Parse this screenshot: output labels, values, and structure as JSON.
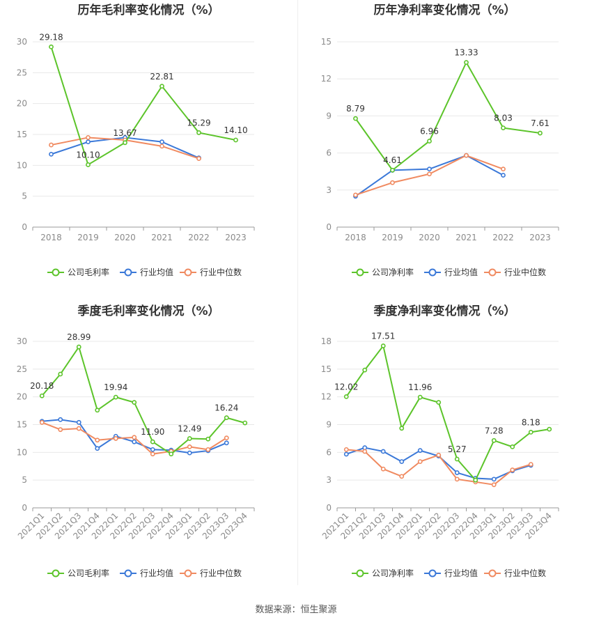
{
  "source_text": "数据来源：恒生聚源",
  "colors": {
    "company": "#5cc42a",
    "avg": "#3a78d8",
    "median": "#f08a60",
    "grid": "#e8e8e8",
    "axis": "#9a9a9a"
  },
  "chart_data": [
    {
      "type": "line",
      "title": "历年毛利率变化情况（%）",
      "categories": [
        "2018",
        "2019",
        "2020",
        "2021",
        "2022",
        "2023"
      ],
      "y_ticks": [
        "0",
        "5",
        "10",
        "15",
        "20",
        "25",
        "30"
      ],
      "ylim": [
        0,
        30
      ],
      "grid": true,
      "legend_position": "bottom",
      "series": [
        {
          "name": "公司毛利率",
          "values": [
            29.18,
            10.1,
            13.67,
            22.81,
            15.29,
            14.1
          ],
          "labels": [
            "29.18",
            "10.10",
            "13.67",
            "22.81",
            "15.29",
            "14.10"
          ]
        },
        {
          "name": "行业均值",
          "values": [
            11.8,
            13.8,
            14.5,
            13.8,
            11.2,
            null
          ]
        },
        {
          "name": "行业中位数",
          "values": [
            13.3,
            14.5,
            14.1,
            13.1,
            11.1,
            null
          ]
        }
      ]
    },
    {
      "type": "line",
      "title": "历年净利率变化情况（%）",
      "categories": [
        "2018",
        "2019",
        "2020",
        "2021",
        "2022",
        "2023"
      ],
      "y_ticks": [
        "0",
        "3",
        "6",
        "9",
        "12",
        "15"
      ],
      "ylim": [
        0,
        15
      ],
      "grid": true,
      "legend_position": "bottom",
      "series": [
        {
          "name": "公司净利率",
          "values": [
            8.79,
            4.61,
            6.96,
            13.33,
            8.03,
            7.61
          ],
          "labels": [
            "8.79",
            "4.61",
            "6.96",
            "13.33",
            "8.03",
            "7.61"
          ]
        },
        {
          "name": "行业均值",
          "values": [
            2.5,
            4.6,
            4.7,
            5.8,
            4.2,
            null
          ]
        },
        {
          "name": "行业中位数",
          "values": [
            2.6,
            3.6,
            4.3,
            5.8,
            4.7,
            null
          ]
        }
      ]
    },
    {
      "type": "line",
      "title": "季度毛利率变化情况（%）",
      "categories": [
        "2021Q1",
        "2021Q2",
        "2021Q3",
        "2021Q4",
        "2022Q1",
        "2022Q2",
        "2022Q3",
        "2022Q4",
        "2023Q1",
        "2023Q2",
        "2023Q3",
        "2023Q4"
      ],
      "y_ticks": [
        "0",
        "5",
        "10",
        "15",
        "20",
        "25",
        "30"
      ],
      "ylim": [
        0,
        30
      ],
      "grid": true,
      "legend_position": "bottom",
      "series": [
        {
          "name": "公司毛利率",
          "values": [
            20.18,
            24.1,
            28.99,
            17.6,
            19.94,
            19.0,
            11.9,
            9.7,
            12.49,
            12.4,
            16.24,
            15.3
          ],
          "labels": [
            "20.18",
            "",
            "28.99",
            "",
            "19.94",
            "",
            "11.90",
            "",
            "12.49",
            "",
            "16.24",
            ""
          ]
        },
        {
          "name": "行业均值",
          "values": [
            15.6,
            15.9,
            15.4,
            10.7,
            12.9,
            11.9,
            10.5,
            10.4,
            9.9,
            10.3,
            11.7,
            null
          ]
        },
        {
          "name": "行业中位数",
          "values": [
            15.4,
            14.1,
            14.3,
            12.2,
            12.5,
            12.7,
            9.7,
            10.2,
            11.0,
            10.5,
            12.6,
            null
          ]
        }
      ]
    },
    {
      "type": "line",
      "title": "季度净利率变化情况（%）",
      "categories": [
        "2021Q1",
        "2021Q2",
        "2021Q3",
        "2021Q4",
        "2022Q1",
        "2022Q2",
        "2022Q3",
        "2022Q4",
        "2023Q1",
        "2023Q2",
        "2023Q3",
        "2023Q4"
      ],
      "y_ticks": [
        "0",
        "3",
        "6",
        "9",
        "12",
        "15",
        "18"
      ],
      "ylim": [
        0,
        18
      ],
      "grid": true,
      "legend_position": "bottom",
      "series": [
        {
          "name": "公司净利率",
          "values": [
            12.02,
            14.9,
            17.51,
            8.6,
            11.96,
            11.4,
            5.27,
            3.0,
            7.28,
            6.6,
            8.18,
            8.5
          ],
          "labels": [
            "12.02",
            "",
            "17.51",
            "",
            "11.96",
            "",
            "5.27",
            "",
            "7.28",
            "",
            "8.18",
            ""
          ]
        },
        {
          "name": "行业均值",
          "values": [
            5.8,
            6.5,
            6.1,
            5.0,
            6.2,
            5.6,
            3.8,
            3.2,
            3.1,
            4.0,
            4.6,
            null
          ]
        },
        {
          "name": "行业中位数",
          "values": [
            6.3,
            6.1,
            4.2,
            3.4,
            5.0,
            5.7,
            3.1,
            2.8,
            2.5,
            4.1,
            4.7,
            null
          ]
        }
      ]
    }
  ]
}
